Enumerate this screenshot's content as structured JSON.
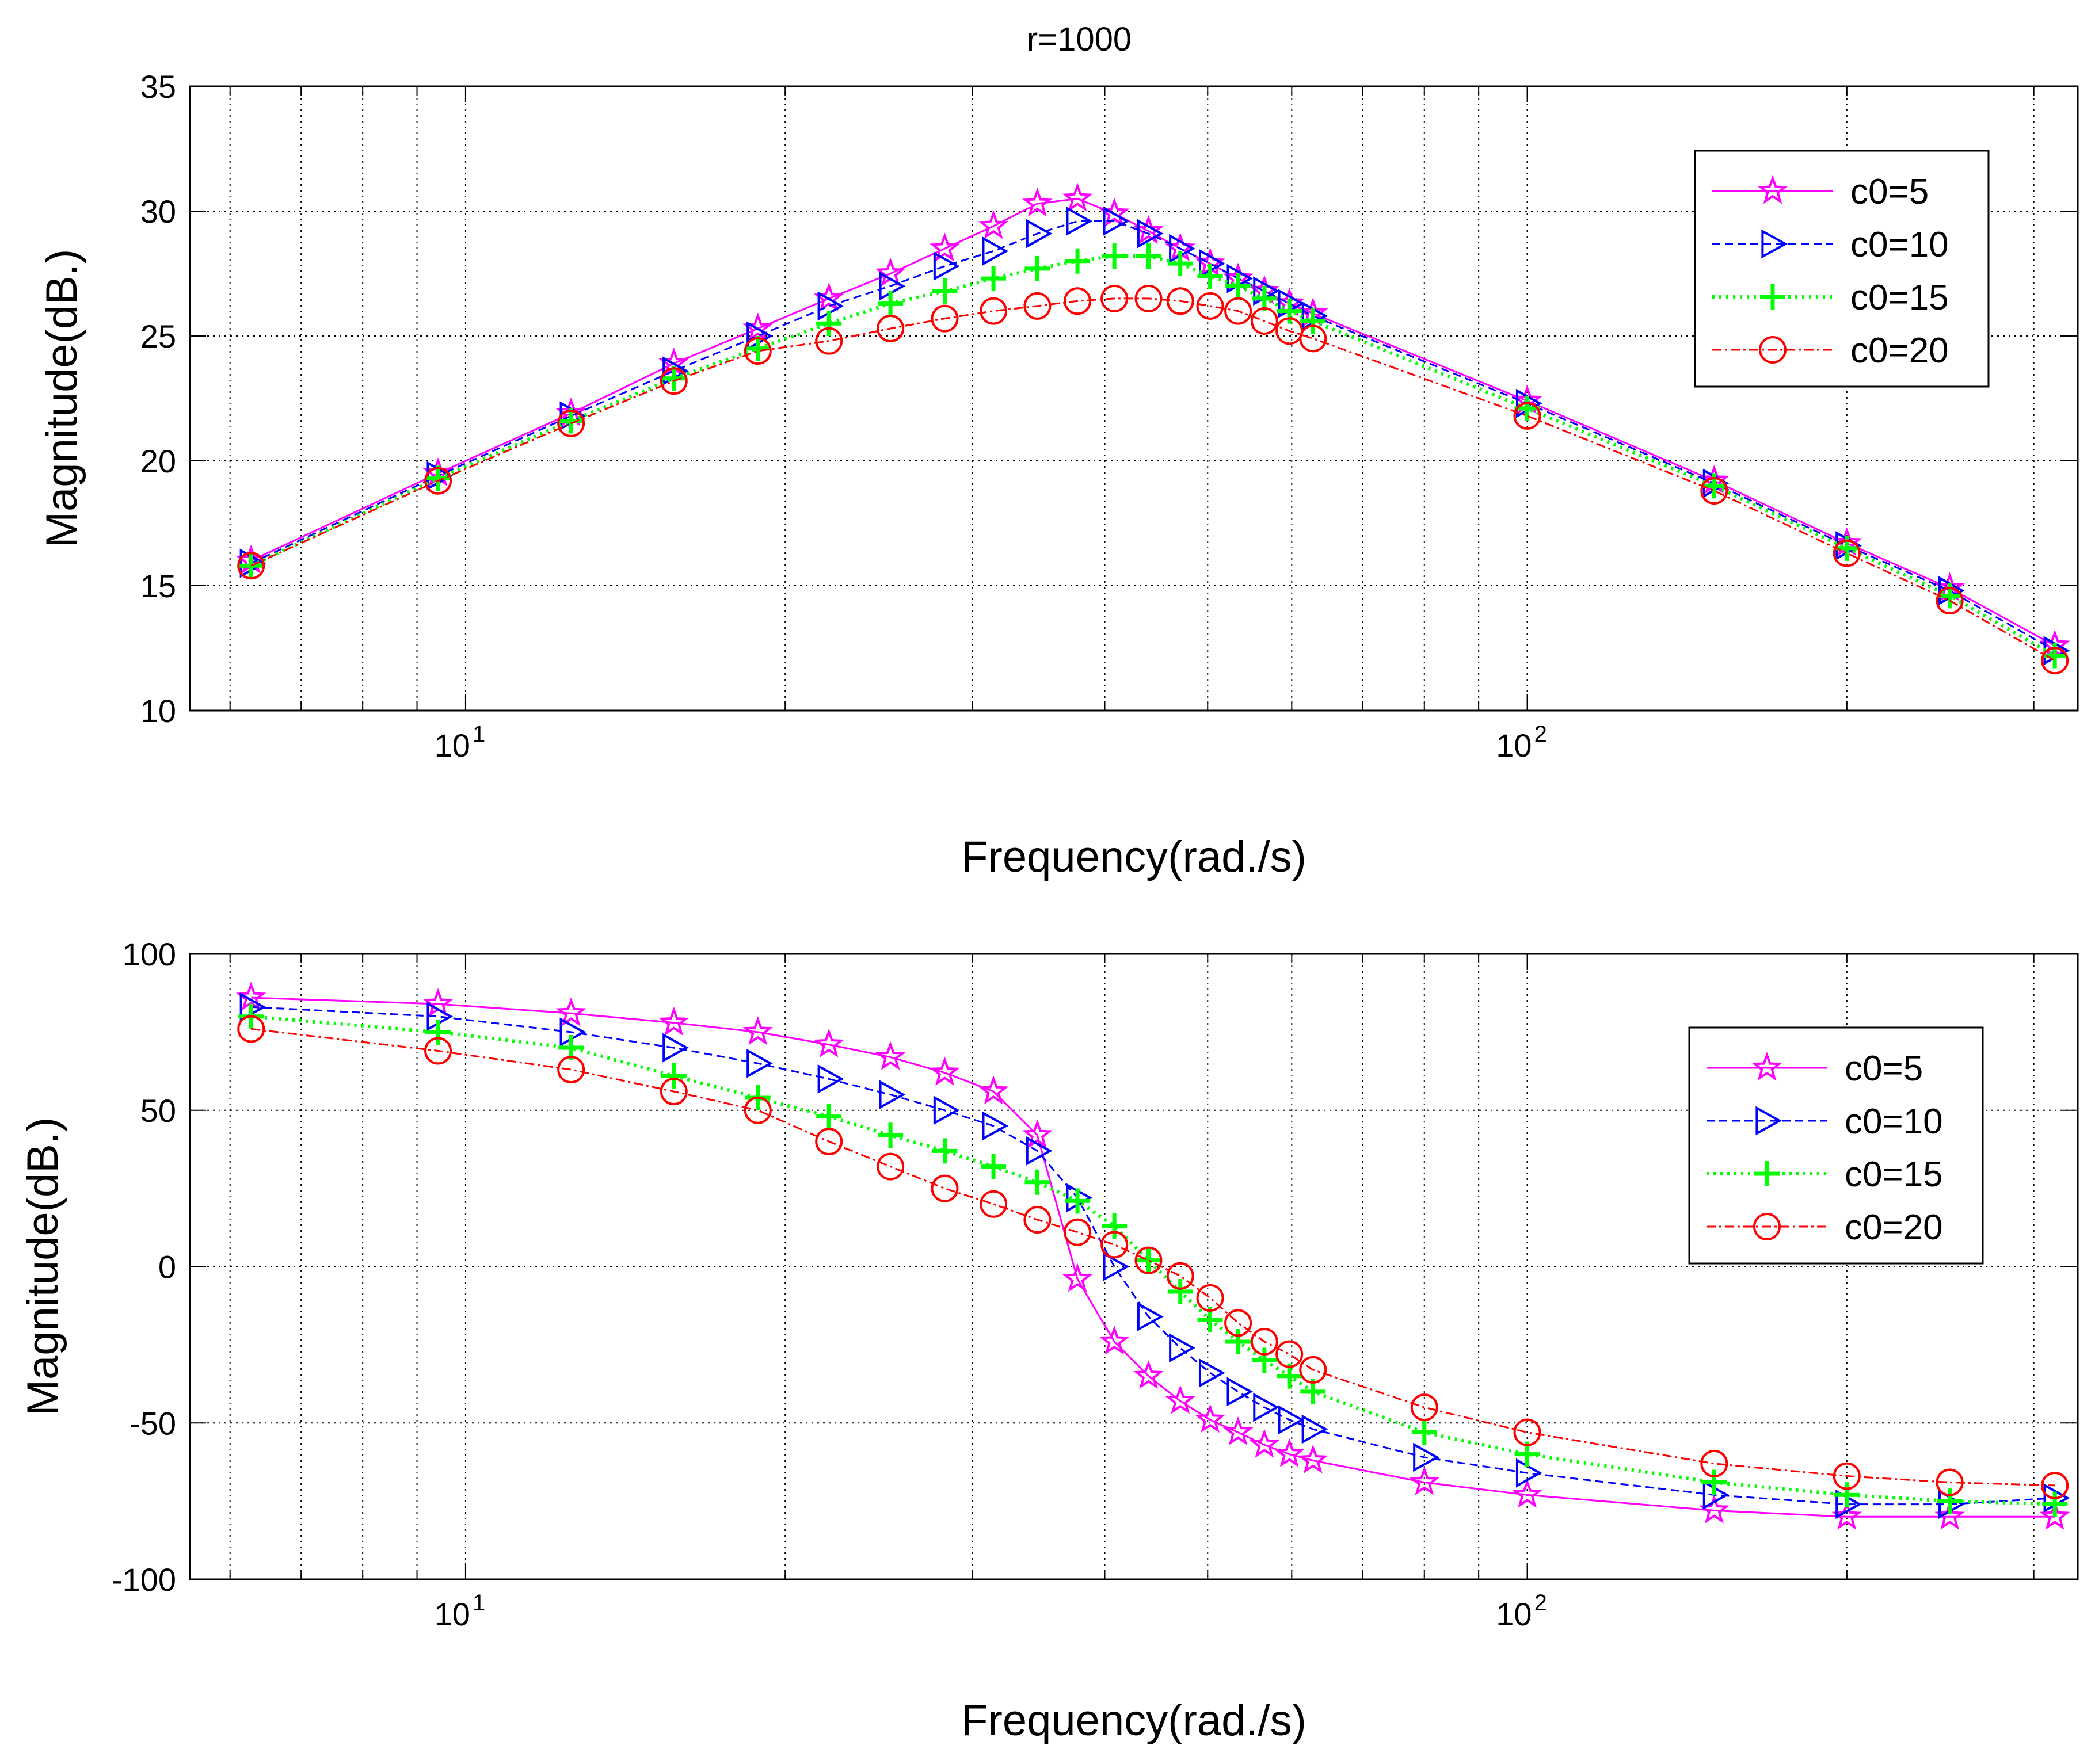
{
  "figure_title": "r=1000",
  "chart_data": [
    {
      "type": "line",
      "xscale": "log",
      "xlim": [
        5.5,
        330
      ],
      "ylim": [
        10,
        35
      ],
      "yticks": [
        10,
        15,
        20,
        25,
        30,
        35
      ],
      "ytick_labels": [
        "10",
        "15",
        "20",
        "25",
        "30",
        "35"
      ],
      "xtick_labels": [
        {
          "base": "10",
          "exp": "1",
          "value": 10
        },
        {
          "base": "10",
          "exp": "2",
          "value": 100
        }
      ],
      "xlabel": "Frequency(rad./s)",
      "ylabel": "Magnitude(dB.)",
      "grid": true,
      "legend_position": "top-right",
      "series": [
        {
          "name": "c0=5",
          "color": "#ff00ff",
          "marker": "star",
          "dash": "solid",
          "points": [
            [
              6.28,
              16.0
            ],
            [
              9.42,
              19.5
            ],
            [
              12.57,
              21.9
            ],
            [
              15.71,
              23.9
            ],
            [
              18.85,
              25.3
            ],
            [
              21.99,
              26.5
            ],
            [
              25.13,
              27.5
            ],
            [
              28.27,
              28.5
            ],
            [
              31.42,
              29.4
            ],
            [
              34.56,
              30.3
            ],
            [
              37.7,
              30.5
            ],
            [
              40.84,
              29.9
            ],
            [
              43.98,
              29.2
            ],
            [
              47.12,
              28.5
            ],
            [
              50.27,
              27.9
            ],
            [
              53.41,
              27.3
            ],
            [
              56.55,
              26.8
            ],
            [
              59.69,
              26.3
            ],
            [
              62.83,
              25.9
            ],
            [
              100,
              22.4
            ],
            [
              150,
              19.2
            ],
            [
              200,
              16.7
            ],
            [
              250,
              14.9
            ],
            [
              314,
              12.6
            ]
          ]
        },
        {
          "name": "c0=10",
          "color": "#0000ff",
          "marker": "triangle-right",
          "dash": "dashed",
          "points": [
            [
              6.28,
              15.9
            ],
            [
              9.42,
              19.4
            ],
            [
              12.57,
              21.8
            ],
            [
              15.71,
              23.6
            ],
            [
              18.85,
              25.0
            ],
            [
              21.99,
              26.2
            ],
            [
              25.13,
              27.0
            ],
            [
              28.27,
              27.8
            ],
            [
              31.42,
              28.4
            ],
            [
              34.56,
              29.1
            ],
            [
              37.7,
              29.6
            ],
            [
              40.84,
              29.6
            ],
            [
              43.98,
              29.1
            ],
            [
              47.12,
              28.5
            ],
            [
              50.27,
              27.9
            ],
            [
              53.41,
              27.3
            ],
            [
              56.55,
              26.8
            ],
            [
              59.69,
              26.3
            ],
            [
              62.83,
              25.8
            ],
            [
              100,
              22.3
            ],
            [
              150,
              19.1
            ],
            [
              200,
              16.6
            ],
            [
              250,
              14.8
            ],
            [
              314,
              12.4
            ]
          ]
        },
        {
          "name": "c0=15",
          "color": "#00ff00",
          "marker": "plus",
          "dash": "dotted",
          "points": [
            [
              6.28,
              15.8
            ],
            [
              9.42,
              19.3
            ],
            [
              12.57,
              21.6
            ],
            [
              15.71,
              23.3
            ],
            [
              18.85,
              24.5
            ],
            [
              21.99,
              25.5
            ],
            [
              25.13,
              26.3
            ],
            [
              28.27,
              26.8
            ],
            [
              31.42,
              27.3
            ],
            [
              34.56,
              27.7
            ],
            [
              37.7,
              28.0
            ],
            [
              40.84,
              28.2
            ],
            [
              43.98,
              28.2
            ],
            [
              47.12,
              27.9
            ],
            [
              50.27,
              27.4
            ],
            [
              53.41,
              27.0
            ],
            [
              56.55,
              26.5
            ],
            [
              59.69,
              26.0
            ],
            [
              62.83,
              25.6
            ],
            [
              100,
              22.1
            ],
            [
              150,
              19.0
            ],
            [
              200,
              16.5
            ],
            [
              250,
              14.6
            ],
            [
              314,
              12.2
            ]
          ]
        },
        {
          "name": "c0=20",
          "color": "#ff0000",
          "marker": "circle",
          "dash": "dashdot",
          "points": [
            [
              6.28,
              15.8
            ],
            [
              9.42,
              19.2
            ],
            [
              12.57,
              21.5
            ],
            [
              15.71,
              23.2
            ],
            [
              18.85,
              24.4
            ],
            [
              21.99,
              24.8
            ],
            [
              25.13,
              25.3
            ],
            [
              28.27,
              25.7
            ],
            [
              31.42,
              26.0
            ],
            [
              34.56,
              26.2
            ],
            [
              37.7,
              26.4
            ],
            [
              40.84,
              26.5
            ],
            [
              43.98,
              26.5
            ],
            [
              47.12,
              26.4
            ],
            [
              50.27,
              26.2
            ],
            [
              53.41,
              26.0
            ],
            [
              56.55,
              25.6
            ],
            [
              59.69,
              25.2
            ],
            [
              62.83,
              24.9
            ],
            [
              100,
              21.8
            ],
            [
              150,
              18.8
            ],
            [
              200,
              16.3
            ],
            [
              250,
              14.4
            ],
            [
              314,
              12.0
            ]
          ]
        }
      ]
    },
    {
      "type": "line",
      "xscale": "log",
      "xlim": [
        5.5,
        330
      ],
      "ylim": [
        -100,
        100
      ],
      "yticks": [
        -100,
        -50,
        0,
        50,
        100
      ],
      "ytick_labels": [
        "-100",
        "-50",
        "0",
        "50",
        "100"
      ],
      "xtick_labels": [
        {
          "base": "10",
          "exp": "1",
          "value": 10
        },
        {
          "base": "10",
          "exp": "2",
          "value": 100
        }
      ],
      "xlabel": "Frequency(rad./s)",
      "ylabel": "Magnitude(dB.)",
      "grid": true,
      "legend_position": "right",
      "series": [
        {
          "name": "c0=5",
          "color": "#ff00ff",
          "marker": "star",
          "dash": "solid",
          "points": [
            [
              6.28,
              86
            ],
            [
              9.42,
              84
            ],
            [
              12.57,
              81
            ],
            [
              15.71,
              78
            ],
            [
              18.85,
              75
            ],
            [
              21.99,
              71
            ],
            [
              25.13,
              67
            ],
            [
              28.27,
              62
            ],
            [
              31.42,
              56
            ],
            [
              34.56,
              42
            ],
            [
              37.7,
              -4
            ],
            [
              40.84,
              -24
            ],
            [
              43.98,
              -35
            ],
            [
              47.12,
              -43
            ],
            [
              50.27,
              -49
            ],
            [
              53.41,
              -53
            ],
            [
              56.55,
              -57
            ],
            [
              59.69,
              -60
            ],
            [
              62.83,
              -62
            ],
            [
              80,
              -69
            ],
            [
              100,
              -73
            ],
            [
              150,
              -78
            ],
            [
              200,
              -80
            ],
            [
              250,
              -80
            ],
            [
              314,
              -80
            ]
          ]
        },
        {
          "name": "c0=10",
          "color": "#0000ff",
          "marker": "triangle-right",
          "dash": "dashed",
          "points": [
            [
              6.28,
              83
            ],
            [
              9.42,
              80
            ],
            [
              12.57,
              75
            ],
            [
              15.71,
              70
            ],
            [
              18.85,
              65
            ],
            [
              21.99,
              60
            ],
            [
              25.13,
              55
            ],
            [
              28.27,
              50
            ],
            [
              31.42,
              45
            ],
            [
              34.56,
              37
            ],
            [
              37.7,
              22
            ],
            [
              40.84,
              0
            ],
            [
              43.98,
              -16
            ],
            [
              47.12,
              -26
            ],
            [
              50.27,
              -34
            ],
            [
              53.41,
              -40
            ],
            [
              56.55,
              -45
            ],
            [
              59.69,
              -49
            ],
            [
              62.83,
              -52
            ],
            [
              80,
              -61
            ],
            [
              100,
              -66
            ],
            [
              150,
              -73
            ],
            [
              200,
              -76
            ],
            [
              250,
              -76
            ],
            [
              314,
              -74
            ]
          ]
        },
        {
          "name": "c0=15",
          "color": "#00ff00",
          "marker": "plus",
          "dash": "dotted",
          "points": [
            [
              6.28,
              80
            ],
            [
              9.42,
              75
            ],
            [
              12.57,
              70
            ],
            [
              15.71,
              61
            ],
            [
              18.85,
              54
            ],
            [
              21.99,
              48
            ],
            [
              25.13,
              42
            ],
            [
              28.27,
              37
            ],
            [
              31.42,
              32
            ],
            [
              34.56,
              27
            ],
            [
              37.7,
              21
            ],
            [
              40.84,
              13
            ],
            [
              43.98,
              2
            ],
            [
              47.12,
              -8
            ],
            [
              50.27,
              -17
            ],
            [
              53.41,
              -24
            ],
            [
              56.55,
              -30
            ],
            [
              59.69,
              -35
            ],
            [
              62.83,
              -40
            ],
            [
              80,
              -53
            ],
            [
              100,
              -60
            ],
            [
              150,
              -69
            ],
            [
              200,
              -73
            ],
            [
              250,
              -75
            ],
            [
              314,
              -76
            ]
          ]
        },
        {
          "name": "c0=20",
          "color": "#ff0000",
          "marker": "circle",
          "dash": "dashdot",
          "points": [
            [
              6.28,
              76
            ],
            [
              9.42,
              69
            ],
            [
              12.57,
              63
            ],
            [
              15.71,
              56
            ],
            [
              18.85,
              50
            ],
            [
              21.99,
              40
            ],
            [
              25.13,
              32
            ],
            [
              28.27,
              25
            ],
            [
              31.42,
              20
            ],
            [
              34.56,
              15
            ],
            [
              37.7,
              11
            ],
            [
              40.84,
              7
            ],
            [
              43.98,
              2
            ],
            [
              47.12,
              -3
            ],
            [
              50.27,
              -10
            ],
            [
              53.41,
              -18
            ],
            [
              56.55,
              -24
            ],
            [
              59.69,
              -28
            ],
            [
              62.83,
              -33
            ],
            [
              80,
              -45
            ],
            [
              100,
              -53
            ],
            [
              150,
              -63
            ],
            [
              200,
              -67
            ],
            [
              250,
              -69
            ],
            [
              314,
              -70
            ]
          ]
        }
      ]
    }
  ]
}
